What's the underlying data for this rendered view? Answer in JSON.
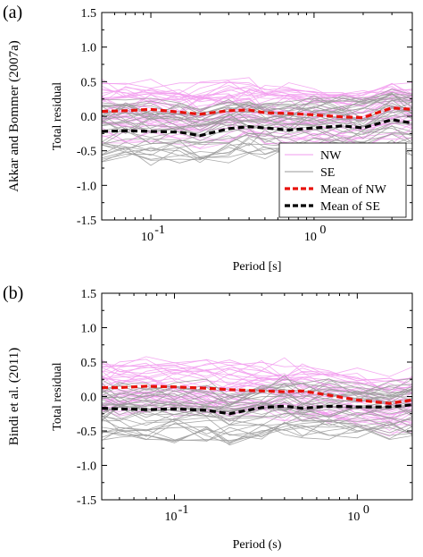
{
  "chart_data": [
    {
      "type": "line",
      "panel_label": "(a)",
      "side_title": "Akkar and Bommer (2007a)",
      "xlabel": "Period [s]",
      "ylabel": "Total residual",
      "xscale": "log",
      "xlim": [
        0.05,
        4.0
      ],
      "ylim": [
        -1.5,
        1.5
      ],
      "x_tick_labels": [
        "10",
        "-1",
        "10",
        "0"
      ],
      "y_ticks": [
        "-1.5",
        "-1.0",
        "-0.5",
        "0.0",
        "0.5",
        "1.0",
        "1.5"
      ],
      "legend_position": "lower-right",
      "colors": {
        "NW": "#f29bef",
        "SE": "#9a9a9a",
        "mean_NW": "#e8120c",
        "mean_SE": "#000000"
      },
      "x": [
        0.05,
        0.07,
        0.1,
        0.15,
        0.2,
        0.3,
        0.4,
        0.5,
        0.7,
        1.0,
        1.5,
        2.0,
        3.0,
        4.0
      ],
      "series": [
        {
          "name": "Mean of NW",
          "style": "dashed",
          "values": [
            0.07,
            0.08,
            0.1,
            0.06,
            0.03,
            0.08,
            0.09,
            0.05,
            0.04,
            0.02,
            -0.01,
            -0.02,
            0.12,
            0.1
          ]
        },
        {
          "name": "Mean of SE",
          "style": "dashed",
          "values": [
            -0.22,
            -0.21,
            -0.22,
            -0.23,
            -0.28,
            -0.18,
            -0.15,
            -0.17,
            -0.2,
            -0.17,
            -0.14,
            -0.17,
            -0.05,
            -0.1
          ]
        }
      ],
      "legend": [
        "NW",
        "SE",
        "Mean of NW",
        "Mean of SE"
      ]
    },
    {
      "type": "line",
      "panel_label": "(b)",
      "side_title": "Bindi et al. (2011)",
      "xlabel": "Period (s)",
      "ylabel": "Total residual",
      "xscale": "log",
      "xlim": [
        0.04,
        2.0
      ],
      "ylim": [
        -1.5,
        1.5
      ],
      "x_tick_labels": [
        "10",
        "-1",
        "10",
        "0"
      ],
      "y_ticks": [
        "-1.5",
        "-1.0",
        "-0.5",
        "0.0",
        "0.5",
        "1.0",
        "1.5"
      ],
      "colors": {
        "NW": "#f29bef",
        "SE": "#9a9a9a",
        "mean_NW": "#e8120c",
        "mean_SE": "#000000"
      },
      "x": [
        0.04,
        0.05,
        0.07,
        0.1,
        0.15,
        0.2,
        0.3,
        0.4,
        0.5,
        0.7,
        1.0,
        1.5,
        2.0
      ],
      "series": [
        {
          "name": "Mean of NW",
          "style": "dashed",
          "values": [
            0.13,
            0.13,
            0.15,
            0.14,
            0.12,
            0.1,
            0.08,
            0.07,
            0.08,
            0.02,
            -0.05,
            -0.1,
            -0.05
          ]
        },
        {
          "name": "Mean of SE",
          "style": "dashed",
          "values": [
            -0.17,
            -0.18,
            -0.19,
            -0.18,
            -0.2,
            -0.25,
            -0.16,
            -0.14,
            -0.17,
            -0.14,
            -0.15,
            -0.15,
            -0.12
          ]
        }
      ]
    }
  ]
}
